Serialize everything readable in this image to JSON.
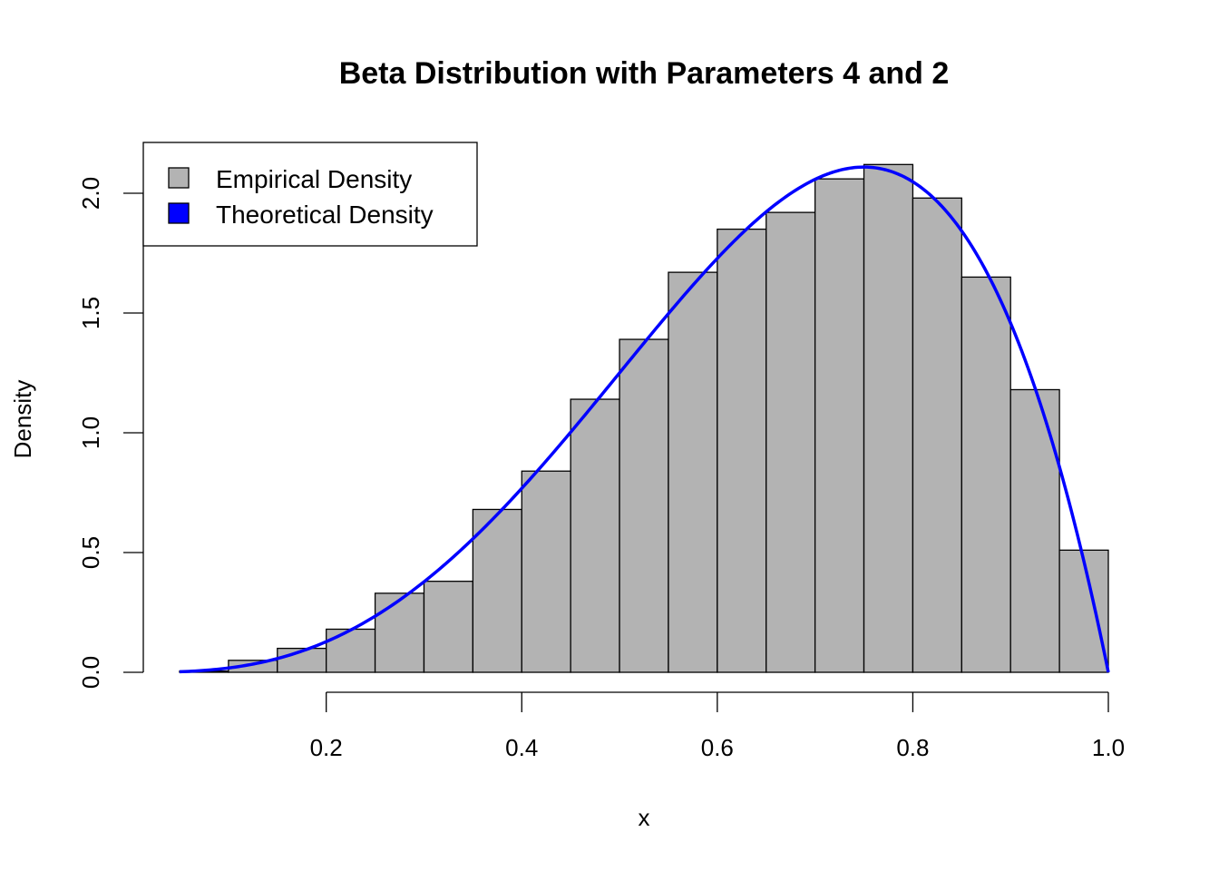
{
  "chart_data": {
    "type": "bar",
    "title": "Beta Distribution with Parameters 4 and 2",
    "xlabel": "x",
    "ylabel": "Density",
    "xlim": [
      0.05,
      1.0
    ],
    "ylim": [
      0,
      2.2
    ],
    "x_ticks": [
      "0.2",
      "0.4",
      "0.6",
      "0.8",
      "1.0"
    ],
    "y_ticks": [
      "0.0",
      "0.5",
      "1.0",
      "1.5",
      "2.0"
    ],
    "grid": false,
    "legend_position": "top-left",
    "legend": [
      {
        "label": "Empirical Density",
        "color": "#b3b3b3"
      },
      {
        "label": "Theoretical Density",
        "color": "#0000ff"
      }
    ],
    "bin_edges": [
      0.05,
      0.1,
      0.15,
      0.2,
      0.25,
      0.3,
      0.35,
      0.4,
      0.45,
      0.5,
      0.55,
      0.6,
      0.65,
      0.7,
      0.75,
      0.8,
      0.85,
      0.9,
      0.95,
      1.0
    ],
    "values": [
      0.005,
      0.05,
      0.1,
      0.18,
      0.33,
      0.38,
      0.68,
      0.84,
      1.14,
      1.39,
      1.67,
      1.85,
      1.92,
      2.06,
      2.12,
      1.98,
      1.65,
      1.18,
      0.51
    ],
    "series": [
      {
        "name": "Empirical Density",
        "type": "histogram",
        "color": "#b3b3b3"
      },
      {
        "name": "Theoretical Density",
        "type": "line",
        "function": "dbeta(x, 4, 2)",
        "color": "#0000ff"
      }
    ]
  }
}
